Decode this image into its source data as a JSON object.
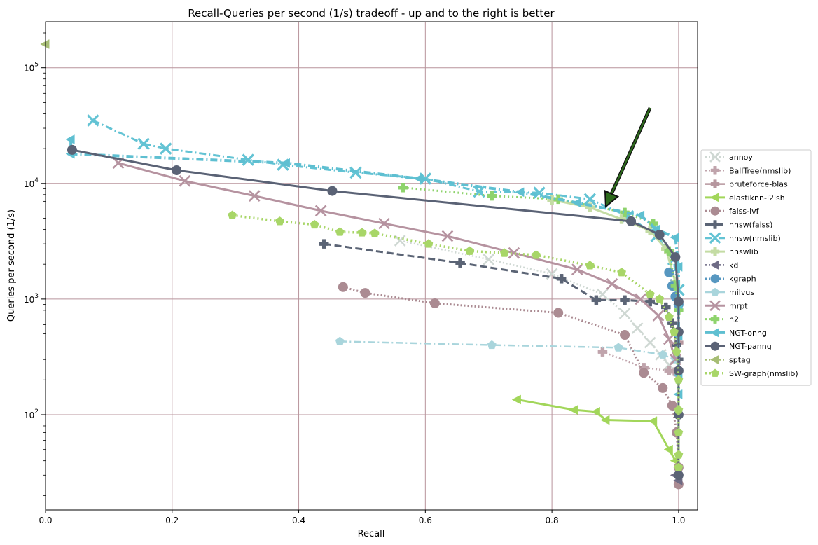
{
  "chart_data": {
    "type": "line",
    "title": "Recall-Queries per second (1/s) tradeoff - up and to the right is better",
    "xlabel": "Recall",
    "ylabel": "Queries per second (1/s)",
    "xlim": [
      0.0,
      1.03
    ],
    "ylim": [
      15,
      250000
    ],
    "yscale": "log",
    "grid": true,
    "legend_position": "right",
    "x_ticks": [
      "0.0",
      "0.2",
      "0.4",
      "0.6",
      "0.8",
      "1.0"
    ],
    "y_ticks": [
      {
        "value": 100,
        "base": "10",
        "exp": "2"
      },
      {
        "value": 1000,
        "base": "10",
        "exp": "3"
      },
      {
        "value": 10000,
        "base": "10",
        "exp": "4"
      },
      {
        "value": 100000,
        "base": "10",
        "exp": "5"
      }
    ],
    "annotation": {
      "type": "arrow",
      "from": [
        0.955,
        45000
      ],
      "to": [
        0.885,
        6300
      ],
      "color": "#2d6a1c"
    },
    "series": [
      {
        "name": "annoy",
        "color": "#cfd8d3",
        "dash": "2,3",
        "marker": "x",
        "width": 2.5,
        "points": [
          [
            0.56,
            3200
          ],
          [
            0.7,
            2200
          ],
          [
            0.8,
            1650
          ],
          [
            0.88,
            1100
          ],
          [
            0.915,
            750
          ],
          [
            0.935,
            560
          ],
          [
            0.955,
            420
          ],
          [
            0.972,
            330
          ],
          [
            0.985,
            270
          ]
        ]
      },
      {
        "name": "BallTree(nmslib)",
        "color": "#c0a4ac",
        "dash": "2,3",
        "marker": "P",
        "width": 2.5,
        "points": [
          [
            0.88,
            350
          ],
          [
            0.945,
            255
          ],
          [
            0.985,
            240
          ],
          [
            0.995,
            235
          ],
          [
            0.998,
            225
          ]
        ]
      },
      {
        "name": "bruteforce-blas",
        "color": "#b6969e",
        "dash": "",
        "marker": "P",
        "width": 2.5,
        "points": [
          [
            1.0,
            420
          ]
        ]
      },
      {
        "name": "elastiknn-l2lsh",
        "color": "#a2d65a",
        "dash": "",
        "marker": "<",
        "width": 3,
        "points": [
          [
            0.745,
            135
          ],
          [
            0.835,
            110
          ],
          [
            0.87,
            106
          ],
          [
            0.885,
            90
          ],
          [
            0.96,
            88
          ],
          [
            0.985,
            50
          ],
          [
            0.995,
            40
          ]
        ]
      },
      {
        "name": "faiss-ivf",
        "color": "#ab8b92",
        "dash": "2,3",
        "marker": "o",
        "width": 3,
        "points": [
          [
            0.47,
            1270
          ],
          [
            0.505,
            1130
          ],
          [
            0.615,
            920
          ],
          [
            0.81,
            760
          ],
          [
            0.915,
            490
          ],
          [
            0.945,
            230
          ],
          [
            0.975,
            170
          ],
          [
            0.99,
            120
          ],
          [
            0.997,
            70
          ],
          [
            1.0,
            35
          ],
          [
            1.0,
            25
          ]
        ]
      },
      {
        "name": "hnsw(faiss)",
        "color": "#5b6475",
        "dash": "10,5",
        "marker": "P",
        "width": 3,
        "points": [
          [
            0.44,
            3000
          ],
          [
            0.655,
            2050
          ],
          [
            0.815,
            1500
          ],
          [
            0.87,
            980
          ],
          [
            0.915,
            980
          ],
          [
            0.955,
            950
          ],
          [
            0.98,
            850
          ],
          [
            0.99,
            620
          ],
          [
            0.997,
            400
          ],
          [
            1.0,
            300
          ]
        ]
      },
      {
        "name": "hnsw(nmslib)",
        "color": "#63c3d4",
        "dash": "10,4,2,4",
        "marker": "X",
        "width": 3,
        "points": [
          [
            0.075,
            35000
          ],
          [
            0.155,
            22000
          ],
          [
            0.19,
            20000
          ],
          [
            0.32,
            16000
          ],
          [
            0.375,
            14500
          ],
          [
            0.49,
            12400
          ],
          [
            0.6,
            11000
          ],
          [
            0.685,
            8500
          ],
          [
            0.78,
            8300
          ],
          [
            0.86,
            7300
          ],
          [
            0.92,
            5200
          ],
          [
            0.965,
            3500
          ],
          [
            0.992,
            2200
          ],
          [
            1.0,
            1200
          ]
        ]
      },
      {
        "name": "hnswlib",
        "color": "#c4dca4",
        "dash": "",
        "marker": "P",
        "width": 3,
        "points": [
          [
            0.8,
            7200
          ],
          [
            0.86,
            6200
          ],
          [
            0.91,
            4900
          ],
          [
            0.955,
            3900
          ],
          [
            0.98,
            2700
          ],
          [
            0.995,
            1400
          ],
          [
            1.0,
            900
          ]
        ]
      },
      {
        "name": "kd",
        "color": "#6e6b85",
        "dash": "2,3",
        "marker": "<",
        "width": 2.5,
        "points": [
          [
            0.995,
            30
          ],
          [
            1.0,
            27
          ]
        ]
      },
      {
        "name": "kgraph",
        "color": "#5797c0",
        "dash": "2,3",
        "marker": "o",
        "width": 2.5,
        "points": [
          [
            0.985,
            1700
          ],
          [
            0.99,
            1300
          ],
          [
            0.995,
            1050
          ],
          [
            1.0,
            900
          ]
        ]
      },
      {
        "name": "milvus",
        "color": "#a9d5dc",
        "dash": "10,4,2,4",
        "marker": "p",
        "width": 2.5,
        "points": [
          [
            0.465,
            430
          ],
          [
            0.705,
            400
          ],
          [
            0.905,
            380
          ],
          [
            0.975,
            330
          ],
          [
            0.995,
            300
          ]
        ]
      },
      {
        "name": "mrpt",
        "color": "#b693a0",
        "dash": "",
        "marker": "x",
        "width": 3,
        "points": [
          [
            0.115,
            15000
          ],
          [
            0.22,
            10500
          ],
          [
            0.33,
            7800
          ],
          [
            0.435,
            5800
          ],
          [
            0.535,
            4500
          ],
          [
            0.635,
            3500
          ],
          [
            0.74,
            2500
          ],
          [
            0.84,
            1800
          ],
          [
            0.895,
            1350
          ],
          [
            0.94,
            1000
          ],
          [
            0.968,
            720
          ],
          [
            0.985,
            450
          ],
          [
            0.995,
            300
          ]
        ]
      },
      {
        "name": "n2",
        "color": "#8ed36c",
        "dash": "2,4",
        "marker": "P",
        "width": 3,
        "points": [
          [
            0.565,
            9200
          ],
          [
            0.705,
            7800
          ],
          [
            0.81,
            7300
          ],
          [
            0.915,
            5600
          ],
          [
            0.96,
            4500
          ],
          [
            0.985,
            2600
          ],
          [
            0.995,
            1300
          ],
          [
            1.0,
            800
          ]
        ]
      },
      {
        "name": "NGT-onng",
        "color": "#5ebfd1",
        "dash": "10,4,2,4",
        "marker": "<",
        "width": 4,
        "points": [
          [
            0.04,
            24000
          ],
          [
            0.04,
            18000
          ],
          [
            0.38,
            15000
          ],
          [
            0.59,
            11000
          ],
          [
            0.75,
            8400
          ],
          [
            0.84,
            6800
          ],
          [
            0.94,
            5300
          ],
          [
            0.965,
            4000
          ],
          [
            0.995,
            3400
          ],
          [
            1.0,
            1900
          ],
          [
            1.0,
            900
          ],
          [
            1.0,
            480
          ],
          [
            1.0,
            220
          ],
          [
            1.0,
            150
          ]
        ]
      },
      {
        "name": "NGT-panng",
        "color": "#5a6275",
        "dash": "",
        "marker": "o",
        "width": 3,
        "points": [
          [
            0.042,
            19500
          ],
          [
            0.207,
            13000
          ],
          [
            0.453,
            8600
          ],
          [
            0.925,
            4700
          ],
          [
            0.97,
            3600
          ],
          [
            0.995,
            2300
          ],
          [
            1.0,
            950
          ],
          [
            1.0,
            520
          ],
          [
            1.0,
            240
          ],
          [
            1.0,
            100
          ],
          [
            1.0,
            30
          ]
        ]
      },
      {
        "name": "sptag",
        "color": "#a6bd74",
        "dash": "2,3",
        "marker": "<",
        "width": 2.5,
        "points": [
          [
            0.0,
            160000
          ]
        ]
      },
      {
        "name": "SW-graph(nmslib)",
        "color": "#a8d668",
        "dash": "2,4",
        "marker": "p",
        "width": 3.5,
        "points": [
          [
            0.295,
            5300
          ],
          [
            0.37,
            4700
          ],
          [
            0.425,
            4400
          ],
          [
            0.465,
            3800
          ],
          [
            0.5,
            3750
          ],
          [
            0.52,
            3700
          ],
          [
            0.605,
            3000
          ],
          [
            0.67,
            2600
          ],
          [
            0.725,
            2500
          ],
          [
            0.775,
            2400
          ],
          [
            0.86,
            1950
          ],
          [
            0.91,
            1700
          ],
          [
            0.955,
            1100
          ],
          [
            0.97,
            1000
          ],
          [
            0.985,
            700
          ],
          [
            0.993,
            520
          ],
          [
            0.997,
            350
          ],
          [
            1.0,
            200
          ],
          [
            1.0,
            110
          ],
          [
            1.0,
            70
          ],
          [
            1.0,
            45
          ],
          [
            1.0,
            35
          ]
        ]
      }
    ]
  }
}
